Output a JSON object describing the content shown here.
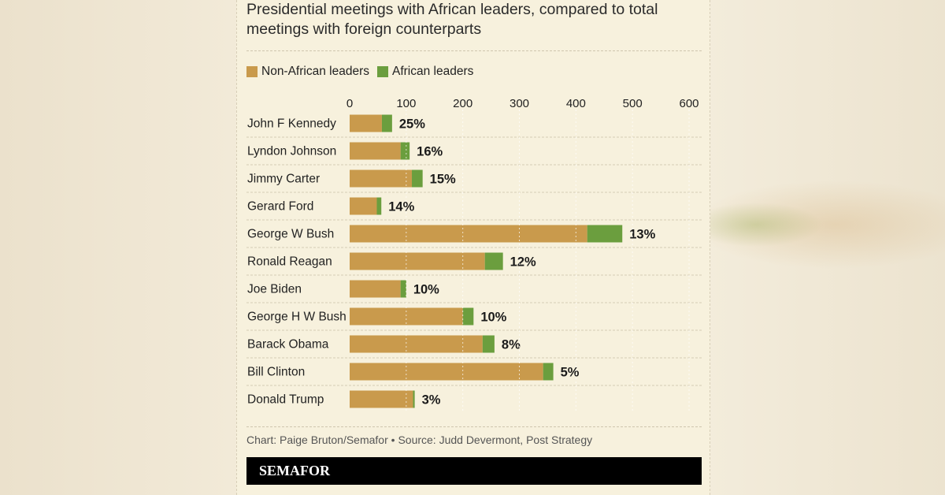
{
  "title": "Presidential meetings with African leaders, compared to total meetings with foreign counterparts",
  "legend": {
    "non_african": "Non-African leaders",
    "african": "African leaders"
  },
  "colors": {
    "non_african": "#c99a4c",
    "african": "#6b9e3e"
  },
  "chart_data": {
    "type": "bar",
    "orientation": "horizontal",
    "stacked": true,
    "categories": [
      "John F Kennedy",
      "Lyndon Johnson",
      "Jimmy Carter",
      "Gerard Ford",
      "George W Bush",
      "Ronald Reagan",
      "Joe Biden",
      "George H W Bush",
      "Barack Obama",
      "Bill Clinton",
      "Donald Trump"
    ],
    "series": [
      {
        "name": "Non-African leaders",
        "values": [
          57,
          90,
          110,
          48,
          420,
          239,
          90,
          200,
          235,
          342,
          112
        ]
      },
      {
        "name": "African leaders",
        "values": [
          18,
          16,
          19,
          8,
          62,
          32,
          10,
          19,
          21,
          18,
          3
        ]
      }
    ],
    "labels": [
      "25%",
      "16%",
      "15%",
      "14%",
      "13%",
      "12%",
      "10%",
      "10%",
      "8%",
      "5%",
      "3%"
    ],
    "xticks": [
      0,
      100,
      200,
      300,
      400,
      500,
      600
    ],
    "xlim": [
      0,
      600
    ],
    "grid": true,
    "legend_position": "top-left"
  },
  "note": "Chart: Paige Bruton/Semafor • Source: Judd Devermont, Post Strategy",
  "footer": "SEMAFOR"
}
